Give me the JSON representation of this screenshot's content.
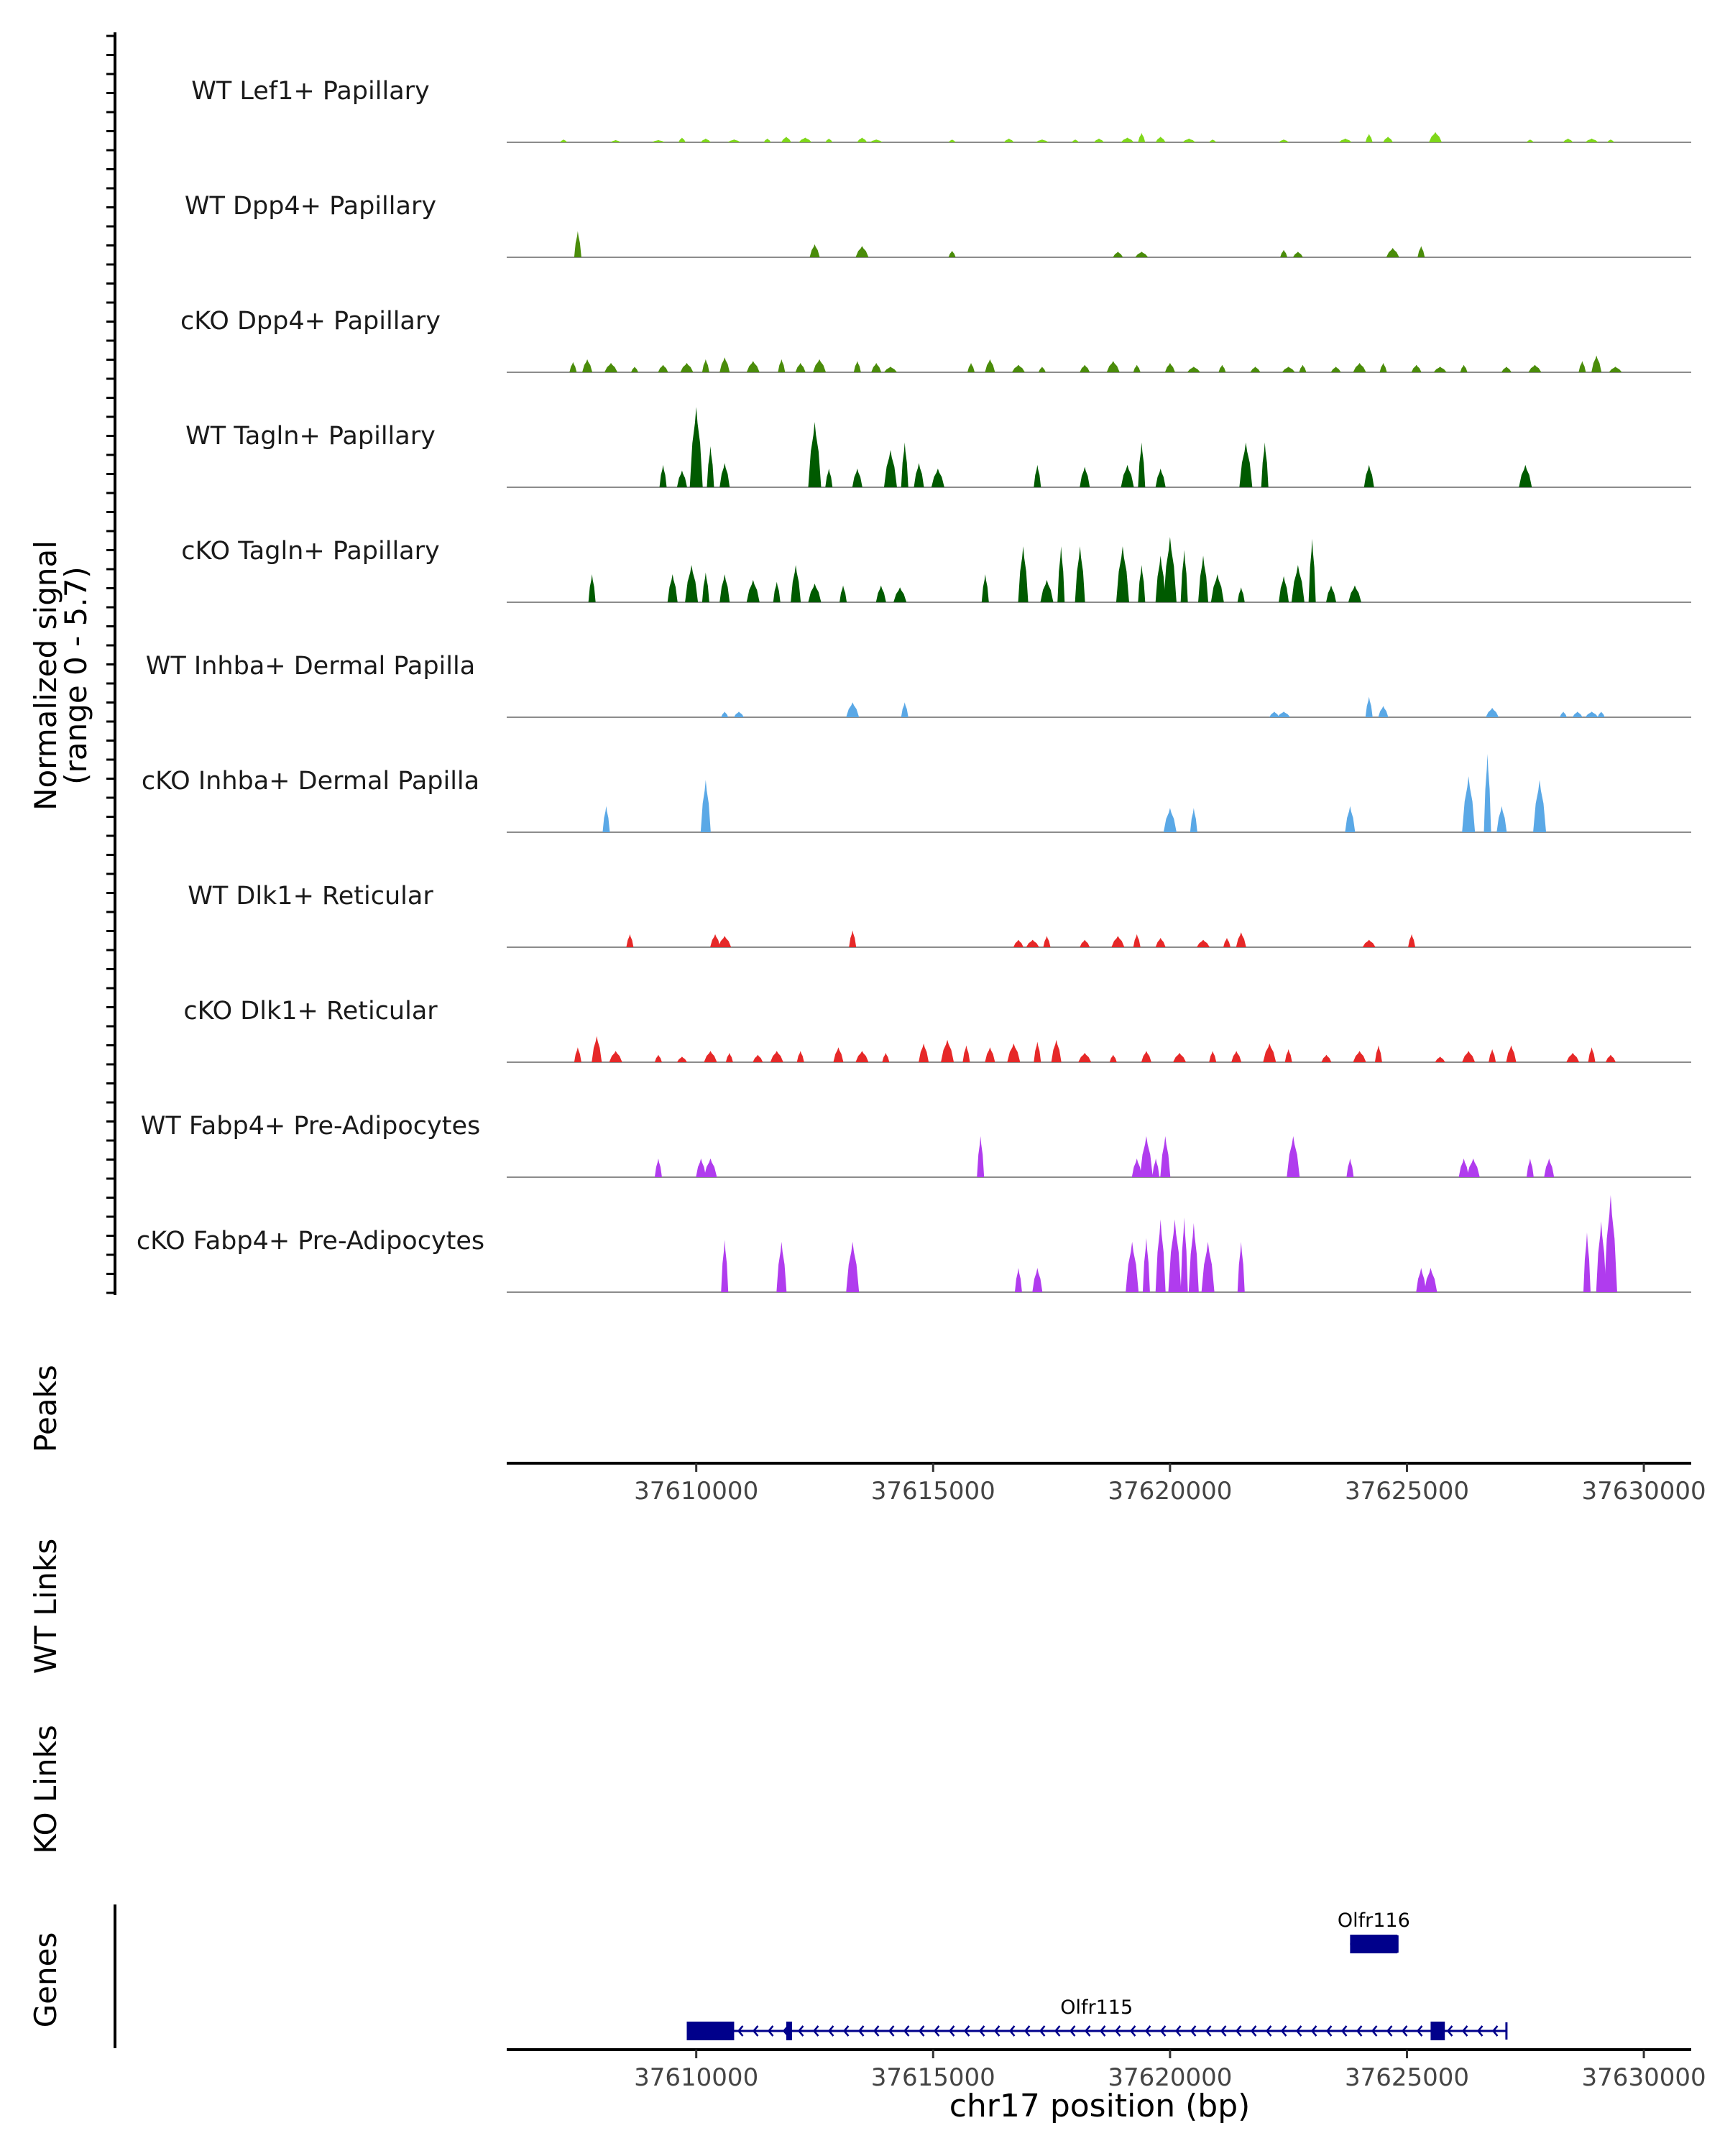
{
  "chart_data": {
    "type": "area",
    "title": "",
    "chromosome": "chr17",
    "xlabel": "chr17 position (bp)",
    "xlim": [
      37606000,
      37631000
    ],
    "x_ticks": [
      37610000,
      37615000,
      37620000,
      37625000,
      37630000
    ],
    "x_tick_labels": [
      "37610000",
      "37615000",
      "37620000",
      "37625000",
      "37630000"
    ],
    "coverage": {
      "ylabel_line1": "Normalized signal",
      "ylabel_line2": "(range 0 - 5.7)",
      "ylim": [
        0,
        5.7
      ],
      "tracks": [
        {
          "name": "WT Lef1+ Papillary",
          "color": "#7fd71a",
          "peaks": [
            [
              37607200,
              0.15
            ],
            [
              37608300,
              0.12
            ],
            [
              37609200,
              0.12
            ],
            [
              37609700,
              0.25
            ],
            [
              37610200,
              0.2
            ],
            [
              37610800,
              0.15
            ],
            [
              37611500,
              0.2
            ],
            [
              37611900,
              0.3
            ],
            [
              37612300,
              0.25
            ],
            [
              37612800,
              0.2
            ],
            [
              37613500,
              0.25
            ],
            [
              37613800,
              0.15
            ],
            [
              37615400,
              0.15
            ],
            [
              37616600,
              0.2
            ],
            [
              37617300,
              0.15
            ],
            [
              37618000,
              0.15
            ],
            [
              37618500,
              0.2
            ],
            [
              37619100,
              0.25
            ],
            [
              37619400,
              0.5
            ],
            [
              37619800,
              0.3
            ],
            [
              37620400,
              0.2
            ],
            [
              37620900,
              0.15
            ],
            [
              37622400,
              0.15
            ],
            [
              37623700,
              0.2
            ],
            [
              37624200,
              0.45
            ],
            [
              37624600,
              0.3
            ],
            [
              37625600,
              0.55
            ],
            [
              37627600,
              0.15
            ],
            [
              37628400,
              0.2
            ],
            [
              37628900,
              0.2
            ],
            [
              37629300,
              0.15
            ]
          ]
        },
        {
          "name": "WT Dpp4+ Papillary",
          "color": "#4a8c0a",
          "peaks": [
            [
              37607500,
              1.4
            ],
            [
              37612500,
              0.7
            ],
            [
              37613500,
              0.6
            ],
            [
              37615400,
              0.35
            ],
            [
              37618900,
              0.3
            ],
            [
              37619400,
              0.3
            ],
            [
              37622400,
              0.4
            ],
            [
              37622700,
              0.3
            ],
            [
              37624700,
              0.5
            ],
            [
              37625300,
              0.6
            ]
          ]
        },
        {
          "name": "cKO Dpp4+ Papillary",
          "color": "#4a8c0a",
          "peaks": [
            [
              37607400,
              0.55
            ],
            [
              37607700,
              0.7
            ],
            [
              37608200,
              0.5
            ],
            [
              37608700,
              0.3
            ],
            [
              37609300,
              0.4
            ],
            [
              37609800,
              0.5
            ],
            [
              37610200,
              0.7
            ],
            [
              37610600,
              0.8
            ],
            [
              37611200,
              0.6
            ],
            [
              37611800,
              0.7
            ],
            [
              37612200,
              0.5
            ],
            [
              37612600,
              0.7
            ],
            [
              37613400,
              0.6
            ],
            [
              37613800,
              0.5
            ],
            [
              37614100,
              0.3
            ],
            [
              37615800,
              0.5
            ],
            [
              37616200,
              0.7
            ],
            [
              37616800,
              0.4
            ],
            [
              37617300,
              0.3
            ],
            [
              37618200,
              0.4
            ],
            [
              37618800,
              0.6
            ],
            [
              37619300,
              0.4
            ],
            [
              37620000,
              0.5
            ],
            [
              37620500,
              0.3
            ],
            [
              37621100,
              0.4
            ],
            [
              37621800,
              0.3
            ],
            [
              37622500,
              0.3
            ],
            [
              37622800,
              0.4
            ],
            [
              37623500,
              0.3
            ],
            [
              37624000,
              0.5
            ],
            [
              37624500,
              0.5
            ],
            [
              37625200,
              0.4
            ],
            [
              37625700,
              0.3
            ],
            [
              37626200,
              0.4
            ],
            [
              37627100,
              0.3
            ],
            [
              37627700,
              0.4
            ],
            [
              37628700,
              0.6
            ],
            [
              37629000,
              0.9
            ],
            [
              37629400,
              0.3
            ]
          ]
        },
        {
          "name": "WT Tagln+ Papillary",
          "color": "#005a00",
          "peaks": [
            [
              37609300,
              1.2
            ],
            [
              37609700,
              0.9
            ],
            [
              37610000,
              4.3
            ],
            [
              37610300,
              2.2
            ],
            [
              37610600,
              1.3
            ],
            [
              37612500,
              3.5
            ],
            [
              37612800,
              1.0
            ],
            [
              37613400,
              1.0
            ],
            [
              37614100,
              2.0
            ],
            [
              37614400,
              2.4
            ],
            [
              37614700,
              1.3
            ],
            [
              37615100,
              1.0
            ],
            [
              37617200,
              1.2
            ],
            [
              37618200,
              1.1
            ],
            [
              37619100,
              1.2
            ],
            [
              37619400,
              2.4
            ],
            [
              37619800,
              1.0
            ],
            [
              37621600,
              2.4
            ],
            [
              37622000,
              2.4
            ],
            [
              37624200,
              1.2
            ],
            [
              37627500,
              1.2
            ]
          ]
        },
        {
          "name": "cKO Tagln+ Papillary",
          "color": "#005a00",
          "peaks": [
            [
              37607800,
              1.5
            ],
            [
              37609500,
              1.5
            ],
            [
              37609900,
              2.0
            ],
            [
              37610200,
              1.6
            ],
            [
              37610600,
              1.5
            ],
            [
              37611200,
              1.2
            ],
            [
              37611700,
              1.1
            ],
            [
              37612100,
              2.0
            ],
            [
              37612500,
              1.0
            ],
            [
              37613100,
              0.9
            ],
            [
              37613900,
              0.9
            ],
            [
              37614300,
              0.8
            ],
            [
              37616100,
              1.5
            ],
            [
              37616900,
              3.0
            ],
            [
              37617400,
              1.2
            ],
            [
              37617700,
              3.0
            ],
            [
              37618100,
              3.0
            ],
            [
              37619000,
              3.0
            ],
            [
              37619400,
              2.0
            ],
            [
              37619800,
              2.5
            ],
            [
              37620000,
              3.5
            ],
            [
              37620300,
              2.8
            ],
            [
              37620700,
              2.5
            ],
            [
              37621000,
              1.5
            ],
            [
              37621500,
              0.8
            ],
            [
              37622400,
              1.4
            ],
            [
              37622700,
              2.0
            ],
            [
              37623000,
              3.4
            ],
            [
              37623400,
              0.9
            ],
            [
              37623900,
              0.9
            ]
          ]
        },
        {
          "name": "WT Inhba+ Dermal Papilla",
          "color": "#5aa8e6",
          "peaks": [
            [
              37610600,
              0.3
            ],
            [
              37610900,
              0.3
            ],
            [
              37613300,
              0.8
            ],
            [
              37614400,
              0.8
            ],
            [
              37622200,
              0.3
            ],
            [
              37622400,
              0.3
            ],
            [
              37624200,
              1.1
            ],
            [
              37624500,
              0.6
            ],
            [
              37626800,
              0.5
            ],
            [
              37628300,
              0.3
            ],
            [
              37628600,
              0.3
            ],
            [
              37628900,
              0.3
            ],
            [
              37629100,
              0.3
            ]
          ]
        },
        {
          "name": "cKO Inhba+ Dermal Papilla",
          "color": "#5aa8e6",
          "peaks": [
            [
              37608100,
              1.4
            ],
            [
              37610200,
              2.8
            ],
            [
              37620000,
              1.3
            ],
            [
              37620500,
              1.3
            ],
            [
              37623800,
              1.4
            ],
            [
              37626300,
              3.0
            ],
            [
              37626700,
              4.2
            ],
            [
              37627000,
              1.4
            ],
            [
              37627800,
              2.8
            ]
          ]
        },
        {
          "name": "WT Dlk1+ Reticular",
          "color": "#e62828",
          "peaks": [
            [
              37608600,
              0.7
            ],
            [
              37610400,
              0.7
            ],
            [
              37610600,
              0.6
            ],
            [
              37613300,
              0.9
            ],
            [
              37616800,
              0.4
            ],
            [
              37617100,
              0.4
            ],
            [
              37617400,
              0.6
            ],
            [
              37618200,
              0.4
            ],
            [
              37618900,
              0.6
            ],
            [
              37619300,
              0.7
            ],
            [
              37619800,
              0.5
            ],
            [
              37620700,
              0.4
            ],
            [
              37621200,
              0.5
            ],
            [
              37621500,
              0.8
            ],
            [
              37624200,
              0.4
            ],
            [
              37625100,
              0.7
            ]
          ]
        },
        {
          "name": "cKO Dlk1+ Reticular",
          "color": "#e62828",
          "peaks": [
            [
              37607500,
              0.8
            ],
            [
              37607900,
              1.4
            ],
            [
              37608300,
              0.6
            ],
            [
              37609200,
              0.4
            ],
            [
              37609700,
              0.3
            ],
            [
              37610300,
              0.6
            ],
            [
              37610700,
              0.5
            ],
            [
              37611300,
              0.4
            ],
            [
              37611700,
              0.6
            ],
            [
              37612200,
              0.6
            ],
            [
              37613000,
              0.8
            ],
            [
              37613500,
              0.6
            ],
            [
              37614000,
              0.5
            ],
            [
              37614800,
              1.0
            ],
            [
              37615300,
              1.2
            ],
            [
              37615700,
              0.9
            ],
            [
              37616200,
              0.8
            ],
            [
              37616700,
              1.0
            ],
            [
              37617200,
              1.1
            ],
            [
              37617600,
              1.2
            ],
            [
              37618200,
              0.5
            ],
            [
              37618800,
              0.4
            ],
            [
              37619500,
              0.6
            ],
            [
              37620200,
              0.5
            ],
            [
              37620900,
              0.6
            ],
            [
              37621400,
              0.6
            ],
            [
              37622100,
              1.0
            ],
            [
              37622500,
              0.7
            ],
            [
              37623300,
              0.4
            ],
            [
              37624000,
              0.6
            ],
            [
              37624400,
              0.9
            ],
            [
              37625700,
              0.3
            ],
            [
              37626300,
              0.6
            ],
            [
              37626800,
              0.7
            ],
            [
              37627200,
              0.9
            ],
            [
              37628500,
              0.5
            ],
            [
              37628900,
              0.8
            ],
            [
              37629300,
              0.4
            ]
          ]
        },
        {
          "name": "WT Fabp4+ Pre-Adipocytes",
          "color": "#b03cee",
          "peaks": [
            [
              37609200,
              1.0
            ],
            [
              37610100,
              1.0
            ],
            [
              37610300,
              1.0
            ],
            [
              37616000,
              2.2
            ],
            [
              37619300,
              1.0
            ],
            [
              37619500,
              2.2
            ],
            [
              37619700,
              1.0
            ],
            [
              37619900,
              2.2
            ],
            [
              37622600,
              2.2
            ],
            [
              37623800,
              1.0
            ],
            [
              37626200,
              1.0
            ],
            [
              37626400,
              1.0
            ],
            [
              37627600,
              1.0
            ],
            [
              37628000,
              1.0
            ]
          ]
        },
        {
          "name": "cKO Fabp4+ Pre-Adipocytes",
          "color": "#b03cee",
          "peaks": [
            [
              37610600,
              2.8
            ],
            [
              37611800,
              2.7
            ],
            [
              37613300,
              2.7
            ],
            [
              37616800,
              1.3
            ],
            [
              37617200,
              1.3
            ],
            [
              37619200,
              2.7
            ],
            [
              37619500,
              2.9
            ],
            [
              37619800,
              3.9
            ],
            [
              37620100,
              3.9
            ],
            [
              37620300,
              4.0
            ],
            [
              37620500,
              3.7
            ],
            [
              37620800,
              2.7
            ],
            [
              37621500,
              2.7
            ],
            [
              37625300,
              1.3
            ],
            [
              37625500,
              1.3
            ],
            [
              37628800,
              3.2
            ],
            [
              37629100,
              3.8
            ],
            [
              37629300,
              5.2
            ]
          ]
        }
      ]
    },
    "panels": {
      "peaks_label": "Peaks",
      "wt_links_label": "WT Links",
      "ko_links_label": "KO Links",
      "genes_label": "Genes"
    },
    "genes": [
      {
        "name": "Olfr116",
        "start": 37623800,
        "end": 37624800,
        "strand": "-",
        "exons": [
          [
            37623800,
            37624800
          ]
        ]
      },
      {
        "name": "Olfr115",
        "start": 37609800,
        "end": 37627100,
        "strand": "-",
        "exons": [
          [
            37609800,
            37610800
          ],
          [
            37611900,
            37612000
          ],
          [
            37625500,
            37625800
          ]
        ]
      }
    ]
  }
}
